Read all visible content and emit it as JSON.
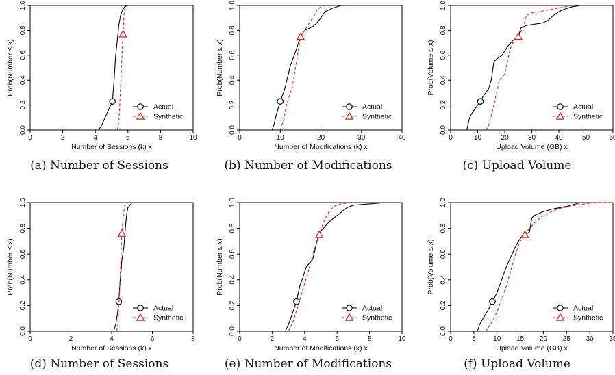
{
  "chart_data": [
    {
      "id": "a",
      "type": "line",
      "caption": "(a) Number of Sessions",
      "xlabel": "Number of Sessions (k) x",
      "ylabel": "Prob(Number ≤ x)",
      "xlim": [
        0,
        10
      ],
      "ylim": [
        0,
        1
      ],
      "xticks": [
        "0",
        "2",
        "4",
        "6",
        "8",
        "10"
      ],
      "yticks": [
        "0.0",
        "0.2",
        "0.4",
        "0.6",
        "0.8",
        "1.0"
      ],
      "legend": "bottom-right",
      "series": [
        {
          "name": "Actual",
          "color": "#000000",
          "dash": "solid",
          "marker": "circle",
          "marker_at": [
            5.05,
            0.23
          ],
          "x": [
            4.2,
            4.4,
            4.6,
            4.8,
            4.95,
            5.05,
            5.15,
            5.25,
            5.35,
            5.45,
            5.55,
            5.65,
            5.8,
            6.0
          ],
          "y": [
            0.0,
            0.04,
            0.1,
            0.16,
            0.2,
            0.23,
            0.4,
            0.6,
            0.72,
            0.85,
            0.92,
            0.96,
            0.99,
            1.0
          ]
        },
        {
          "name": "Synthetic",
          "color": "#e0201b",
          "dash": "dashed",
          "marker": "triangle",
          "marker_at": [
            5.7,
            0.77
          ],
          "x": [
            5.35,
            5.45,
            5.5,
            5.55,
            5.6,
            5.65,
            5.7,
            5.75,
            5.8,
            5.9
          ],
          "y": [
            0.0,
            0.08,
            0.2,
            0.35,
            0.5,
            0.65,
            0.77,
            0.9,
            0.97,
            1.0
          ]
        }
      ]
    },
    {
      "id": "b",
      "type": "line",
      "caption": "(b) Number of Modifications",
      "xlabel": "Number of Modifications (k) x",
      "ylabel": "Prob(Number ≤ x)",
      "xlim": [
        0,
        40
      ],
      "ylim": [
        0,
        1
      ],
      "xticks": [
        "0",
        "10",
        "20",
        "30",
        "40"
      ],
      "yticks": [
        "0.0",
        "0.2",
        "0.4",
        "0.6",
        "0.8",
        "1.0"
      ],
      "legend": "bottom-right",
      "series": [
        {
          "name": "Actual",
          "color": "#000000",
          "dash": "solid",
          "marker": "circle",
          "marker_at": [
            10,
            0.23
          ],
          "x": [
            8,
            8.5,
            9,
            10,
            11,
            12,
            12.5,
            13,
            14,
            15,
            16,
            18,
            19,
            20,
            21,
            23,
            25,
            26
          ],
          "y": [
            0.0,
            0.05,
            0.12,
            0.23,
            0.32,
            0.45,
            0.52,
            0.56,
            0.65,
            0.75,
            0.8,
            0.83,
            0.86,
            0.9,
            0.95,
            0.98,
            1.0,
            1.0
          ]
        },
        {
          "name": "Synthetic",
          "color": "#e0201b",
          "dash": "dashed",
          "marker": "triangle",
          "marker_at": [
            15,
            0.75
          ],
          "x": [
            10,
            11,
            11.5,
            12,
            13,
            14,
            15,
            16,
            17,
            18,
            19,
            20,
            21
          ],
          "y": [
            0.0,
            0.1,
            0.2,
            0.25,
            0.35,
            0.55,
            0.75,
            0.8,
            0.85,
            0.9,
            0.96,
            0.99,
            1.0
          ]
        }
      ]
    },
    {
      "id": "c",
      "type": "line",
      "caption": "(c) Upload Volume",
      "xlabel": "Upload Volume (GB) x",
      "ylabel": "Prob(Volume ≤ x)",
      "xlim": [
        0,
        60
      ],
      "ylim": [
        0,
        1
      ],
      "xticks": [
        "0",
        "10",
        "20",
        "30",
        "40",
        "50",
        "60"
      ],
      "yticks": [
        "0.0",
        "0.2",
        "0.4",
        "0.6",
        "0.8",
        "1.0"
      ],
      "legend": "bottom-right",
      "series": [
        {
          "name": "Actual",
          "color": "#000000",
          "dash": "solid",
          "marker": "circle",
          "marker_at": [
            11,
            0.23
          ],
          "x": [
            6,
            7,
            8,
            10,
            11,
            12,
            14,
            15,
            16,
            17,
            19,
            21,
            23,
            25,
            26,
            28,
            31,
            34,
            36,
            38,
            40,
            42,
            45,
            48,
            50
          ],
          "y": [
            0.0,
            0.1,
            0.14,
            0.2,
            0.23,
            0.27,
            0.33,
            0.4,
            0.55,
            0.57,
            0.6,
            0.67,
            0.72,
            0.75,
            0.82,
            0.84,
            0.85,
            0.86,
            0.88,
            0.92,
            0.95,
            0.97,
            0.99,
            1.0,
            1.0
          ]
        },
        {
          "name": "Synthetic",
          "color": "#e0201b",
          "dash": "dashed",
          "marker": "triangle",
          "marker_at": [
            25,
            0.75
          ],
          "x": [
            13,
            14,
            15,
            16,
            17,
            18,
            20,
            21,
            22,
            23,
            25,
            27,
            28,
            30,
            35,
            40,
            45,
            48
          ],
          "y": [
            0.0,
            0.03,
            0.12,
            0.2,
            0.3,
            0.4,
            0.45,
            0.55,
            0.65,
            0.7,
            0.75,
            0.83,
            0.92,
            0.94,
            0.96,
            0.98,
            1.0,
            1.0
          ]
        }
      ]
    },
    {
      "id": "d",
      "type": "line",
      "caption": "(d) Number of Sessions",
      "xlabel": "Number of Sessions (k) x",
      "ylabel": "Prob(Number ≤ x)",
      "xlim": [
        0,
        8
      ],
      "ylim": [
        0,
        1
      ],
      "xticks": [
        "0",
        "2",
        "4",
        "6",
        "8"
      ],
      "yticks": [
        "0.0",
        "0.2",
        "0.4",
        "0.6",
        "0.8",
        "1.0"
      ],
      "legend": "bottom-right",
      "series": [
        {
          "name": "Actual",
          "color": "#000000",
          "dash": "solid",
          "marker": "circle",
          "marker_at": [
            4.35,
            0.23
          ],
          "x": [
            4.1,
            4.2,
            4.3,
            4.35,
            4.4,
            4.5,
            4.6,
            4.65,
            4.7,
            4.75,
            4.8,
            4.9,
            5.0,
            5.1
          ],
          "y": [
            0.0,
            0.05,
            0.15,
            0.23,
            0.35,
            0.55,
            0.65,
            0.75,
            0.85,
            0.92,
            0.96,
            0.98,
            1.0,
            1.0
          ]
        },
        {
          "name": "Synthetic",
          "color": "#e0201b",
          "dash": "dashed",
          "marker": "triangle",
          "marker_at": [
            4.5,
            0.76
          ],
          "x": [
            4.25,
            4.3,
            4.35,
            4.4,
            4.45,
            4.5,
            4.55,
            4.6,
            4.65,
            4.75
          ],
          "y": [
            0.0,
            0.05,
            0.2,
            0.35,
            0.55,
            0.76,
            0.86,
            0.93,
            0.98,
            1.0
          ]
        }
      ]
    },
    {
      "id": "e",
      "type": "line",
      "caption": "(e) Number of Modifications",
      "xlabel": "Number of Modifications (k) x",
      "ylabel": "Prob(Number ≤ x)",
      "xlim": [
        0,
        10
      ],
      "ylim": [
        0,
        1
      ],
      "xticks": [
        "0",
        "2",
        "4",
        "6",
        "8",
        "10"
      ],
      "yticks": [
        "0.0",
        "0.2",
        "0.4",
        "0.6",
        "0.8",
        "1.0"
      ],
      "legend": "bottom-right",
      "series": [
        {
          "name": "Actual",
          "color": "#000000",
          "dash": "solid",
          "marker": "circle",
          "marker_at": [
            3.5,
            0.23
          ],
          "x": [
            2.8,
            3.0,
            3.2,
            3.5,
            3.7,
            3.9,
            4.1,
            4.3,
            4.5,
            4.8,
            5.0,
            5.3,
            5.6,
            6.0,
            6.3,
            6.6,
            7.0,
            8.0,
            9.0
          ],
          "y": [
            0.0,
            0.05,
            0.12,
            0.23,
            0.35,
            0.42,
            0.5,
            0.53,
            0.56,
            0.72,
            0.78,
            0.82,
            0.86,
            0.9,
            0.93,
            0.96,
            0.98,
            0.99,
            1.0
          ]
        },
        {
          "name": "Synthetic",
          "color": "#e0201b",
          "dash": "dashed",
          "marker": "triangle",
          "marker_at": [
            4.9,
            0.75
          ],
          "x": [
            3.0,
            3.3,
            3.6,
            3.9,
            4.2,
            4.5,
            4.9,
            5.2,
            5.5,
            5.8,
            6.2,
            7.0
          ],
          "y": [
            0.0,
            0.08,
            0.2,
            0.33,
            0.45,
            0.6,
            0.75,
            0.86,
            0.93,
            0.97,
            0.99,
            1.0
          ]
        }
      ]
    },
    {
      "id": "f",
      "type": "line",
      "caption": "(f) Upload Volume",
      "xlabel": "Upload Volume (GB) x",
      "ylabel": "Prob(Volume ≤ x)",
      "xlim": [
        0,
        35
      ],
      "ylim": [
        0,
        1
      ],
      "xticks": [
        "0",
        "5",
        "10",
        "15",
        "20",
        "25",
        "30",
        "35"
      ],
      "yticks": [
        "0.0",
        "0.2",
        "0.4",
        "0.6",
        "0.8",
        "1.0"
      ],
      "legend": "bottom-right",
      "series": [
        {
          "name": "Actual",
          "color": "#000000",
          "dash": "solid",
          "marker": "circle",
          "marker_at": [
            9,
            0.23
          ],
          "x": [
            5.8,
            6.2,
            7,
            8,
            9,
            10,
            11,
            12,
            13,
            14,
            15,
            16,
            16.5,
            17,
            17.5,
            18,
            20,
            22,
            25,
            28
          ],
          "y": [
            0.0,
            0.05,
            0.1,
            0.16,
            0.23,
            0.3,
            0.4,
            0.5,
            0.58,
            0.66,
            0.72,
            0.75,
            0.76,
            0.77,
            0.88,
            0.9,
            0.93,
            0.95,
            0.97,
            1.0
          ]
        },
        {
          "name": "Synthetic",
          "color": "#e0201b",
          "dash": "dashed",
          "marker": "triangle",
          "marker_at": [
            16,
            0.75
          ],
          "x": [
            7.5,
            8,
            9,
            10,
            11,
            12,
            13,
            14,
            15,
            16,
            17,
            18,
            19,
            20,
            23,
            27,
            31,
            35
          ],
          "y": [
            0.0,
            0.02,
            0.08,
            0.15,
            0.25,
            0.35,
            0.48,
            0.6,
            0.7,
            0.75,
            0.8,
            0.84,
            0.87,
            0.9,
            0.95,
            0.98,
            1.0,
            1.0
          ]
        }
      ]
    }
  ]
}
